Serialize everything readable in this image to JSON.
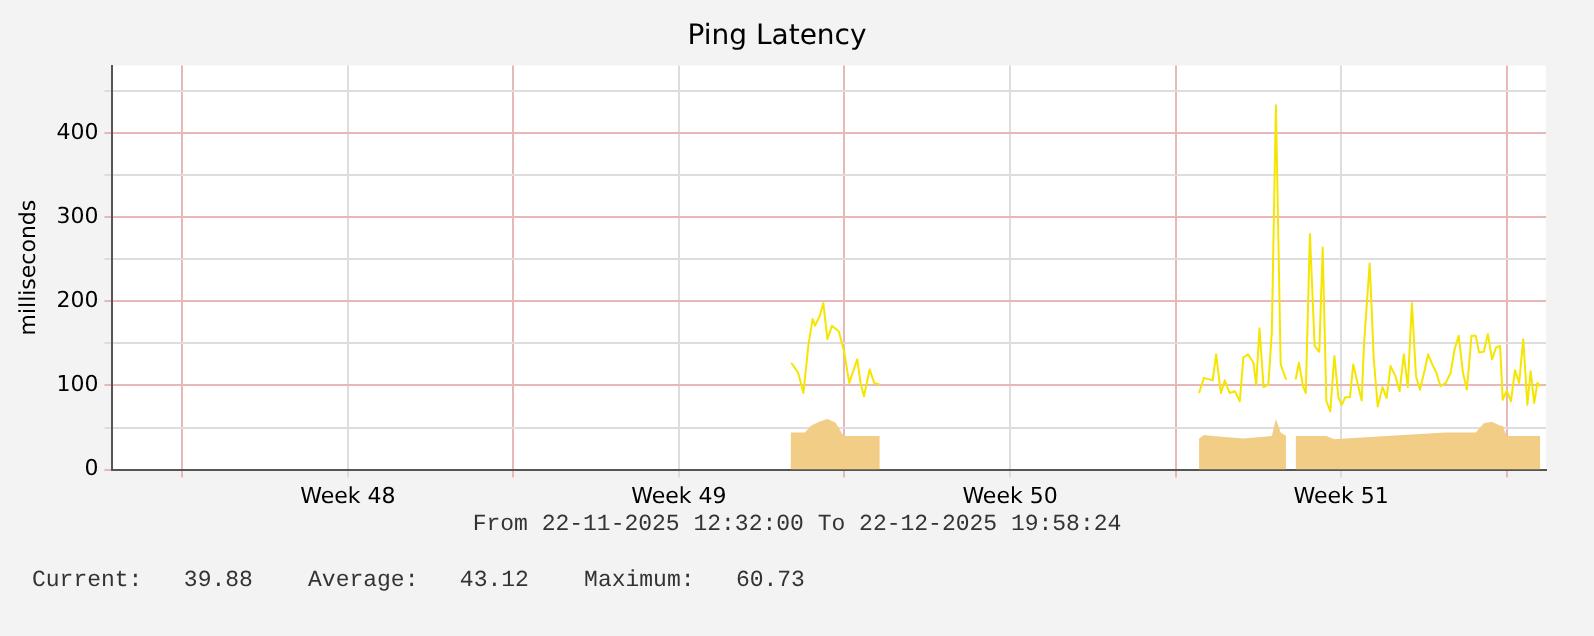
{
  "chart_data": {
    "type": "line",
    "title": "Ping Latency",
    "ylabel": "milliseconds",
    "xlim": [
      "2025-11-22T12:32",
      "2025-12-22T19:58"
    ],
    "xticks": [
      {
        "value": "2025-11-24T00:00",
        "label": null
      },
      {
        "value": "2025-11-27T12:00",
        "label": "Week 48"
      },
      {
        "value": "2025-12-01T00:00",
        "label": null
      },
      {
        "value": "2025-12-04T12:00",
        "label": "Week 49"
      },
      {
        "value": "2025-12-08T00:00",
        "label": null
      },
      {
        "value": "2025-12-11T12:00",
        "label": "Week 50"
      },
      {
        "value": "2025-12-15T00:00",
        "label": null
      },
      {
        "value": "2025-12-18T12:00",
        "label": "Week 51"
      },
      {
        "value": "2025-12-22T00:00",
        "label": null
      }
    ],
    "ylim": [
      0,
      480
    ],
    "yticks": [
      0,
      {
        "value": 50,
        "label": null
      },
      100,
      {
        "value": 150,
        "label": null
      },
      200,
      {
        "value": 250,
        "label": null
      },
      300,
      {
        "value": 350,
        "label": null
      },
      400,
      {
        "value": 450,
        "label": null
      }
    ],
    "grid": true,
    "legend": false,
    "marker": "none",
    "line_style": "solid",
    "annotations": [
      "From 22-11-2025 12:32:00 To 22-12-2025 19:58:24",
      "Current:   39.88    Average:   43.12    Maximum:   60.73"
    ],
    "series": [
      {
        "type": "area",
        "color": "#f2cd85",
        "x": [
          "2025-12-06T20:40",
          "2025-12-07T03:55",
          "2025-12-07T07:00",
          "2025-12-07T11:10",
          "2025-12-07T15:20",
          "2025-12-07T19:25",
          "2025-12-07T23:35",
          "2025-12-08T17:55",
          "2025-12-10T00:00",
          "2025-12-15T11:55",
          "2025-12-15T14:25",
          "2025-12-15T18:50",
          "2025-12-16T10:25",
          "2025-12-17T00:50",
          "2025-12-17T02:55",
          "2025-12-17T05:20",
          "2025-12-17T08:05",
          "2025-12-17T10:05",
          "2025-12-17T12:55",
          "2025-12-18T04:30",
          "2025-12-18T08:35",
          "2025-12-18T14:05",
          "2025-12-19T11:05",
          "2025-12-20T02:00",
          "2025-12-20T17:05",
          "2025-12-21T08:20",
          "2025-12-21T12:25",
          "2025-12-21T16:35",
          "2025-12-21T20:40",
          "2025-12-21T22:00",
          "2025-12-22T00:05",
          "2025-12-22T17:05"
        ],
        "values": [
          44,
          44,
          52,
          57,
          60,
          56,
          40,
          40,
          null,
          37,
          41,
          40,
          37,
          40,
          60,
          44,
          40,
          null,
          40,
          40,
          36,
          37,
          40,
          42,
          44,
          44,
          55,
          57,
          52,
          52,
          40,
          40
        ]
      },
      {
        "type": "line",
        "color": "#f5e600",
        "x": [
          "2025-12-06T21:00",
          "2025-12-07T00:30",
          "2025-12-07T03:10",
          "2025-12-07T05:40",
          "2025-12-07T07:50",
          "2025-12-07T09:05",
          "2025-12-07T11:30",
          "2025-12-07T13:15",
          "2025-12-07T15:20",
          "2025-12-07T17:40",
          "2025-12-07T21:10",
          "2025-12-07T23:55",
          "2025-12-08T02:25",
          "2025-12-08T04:45",
          "2025-12-08T06:30",
          "2025-12-08T08:10",
          "2025-12-08T09:55",
          "2025-12-08T12:45",
          "2025-12-08T15:05",
          "2025-12-08T17:55",
          "2025-12-10T00:00",
          "2025-12-15T11:55",
          "2025-12-15T14:25",
          "2025-12-15T18:50",
          "2025-12-15T20:35",
          "2025-12-15T23:00",
          "2025-12-16T01:00",
          "2025-12-16T03:25",
          "2025-12-16T06:10",
          "2025-12-16T08:35",
          "2025-12-16T10:25",
          "2025-12-16T12:45",
          "2025-12-16T15:30",
          "2025-12-16T16:55",
          "2025-12-16T18:35",
          "2025-12-16T20:40",
          "2025-12-16T23:05",
          "2025-12-17T00:50",
          "2025-12-17T02:55",
          "2025-12-17T05:20",
          "2025-12-17T08:05",
          "2025-12-17T10:05",
          "2025-12-17T12:55",
          "2025-12-17T14:35",
          "2025-12-17T16:40",
          "2025-12-17T18:05",
          "2025-12-17T20:10",
          "2025-12-17T22:35",
          "2025-12-18T00:55",
          "2025-12-18T02:40",
          "2025-12-18T04:30",
          "2025-12-18T06:30",
          "2025-12-18T08:35",
          "2025-12-18T10:40",
          "2025-12-18T12:20",
          "2025-12-18T14:05",
          "2025-12-18T16:30",
          "2025-12-18T18:10",
          "2025-12-18T20:20",
          "2025-12-18T22:25",
          "2025-12-18T23:40",
          "2025-12-19T02:30",
          "2025-12-19T04:35",
          "2025-12-19T06:35",
          "2025-12-19T09:00",
          "2025-12-19T11:05",
          "2025-12-19T13:05",
          "2025-12-19T15:35",
          "2025-12-19T17:40",
          "2025-12-19T19:50",
          "2025-12-19T21:50",
          "2025-12-19T23:55",
          "2025-12-20T02:00",
          "2025-12-20T04:00",
          "2025-12-20T06:05",
          "2025-12-20T08:10",
          "2025-12-20T10:15",
          "2025-12-20T12:20",
          "2025-12-20T14:25",
          "2025-12-20T17:05",
          "2025-12-20T19:35",
          "2025-12-20T21:35",
          "2025-12-20T23:40",
          "2025-12-21T01:50",
          "2025-12-21T03:50",
          "2025-12-21T06:10",
          "2025-12-21T08:20",
          "2025-12-21T10:00",
          "2025-12-21T12:25",
          "2025-12-21T14:30",
          "2025-12-21T16:35",
          "2025-12-21T18:35",
          "2025-12-21T20:40",
          "2025-12-21T22:00",
          "2025-12-22T00:05",
          "2025-12-22T02:10",
          "2025-12-22T04:15",
          "2025-12-22T06:20",
          "2025-12-22T08:25",
          "2025-12-22T10:30",
          "2025-12-22T12:10",
          "2025-12-22T14:00",
          "2025-12-22T15:35",
          "2025-12-22T17:05"
        ],
        "values": [
          127,
          115,
          91,
          147,
          179,
          171,
          183,
          198,
          155,
          171,
          164,
          139,
          103,
          119,
          131,
          103,
          87,
          119,
          103,
          101,
          null,
          91,
          109,
          106,
          137,
          91,
          106,
          91,
          93,
          81,
          133,
          137,
          127,
          101,
          168,
          98,
          101,
          163,
          433,
          125,
          107,
          null,
          107,
          127,
          99,
          91,
          280,
          147,
          140,
          264,
          82,
          69,
          135,
          85,
          77,
          86,
          86,
          125,
          103,
          82,
          151,
          245,
          131,
          75,
          98,
          85,
          123,
          111,
          93,
          137,
          98,
          198,
          111,
          95,
          115,
          137,
          125,
          115,
          99,
          103,
          115,
          143,
          159,
          115,
          95,
          159,
          159,
          139,
          140,
          161,
          131,
          145,
          147,
          83,
          94,
          81,
          118,
          103,
          155,
          77,
          117,
          79,
          103,
          99
        ]
      }
    ]
  }
}
